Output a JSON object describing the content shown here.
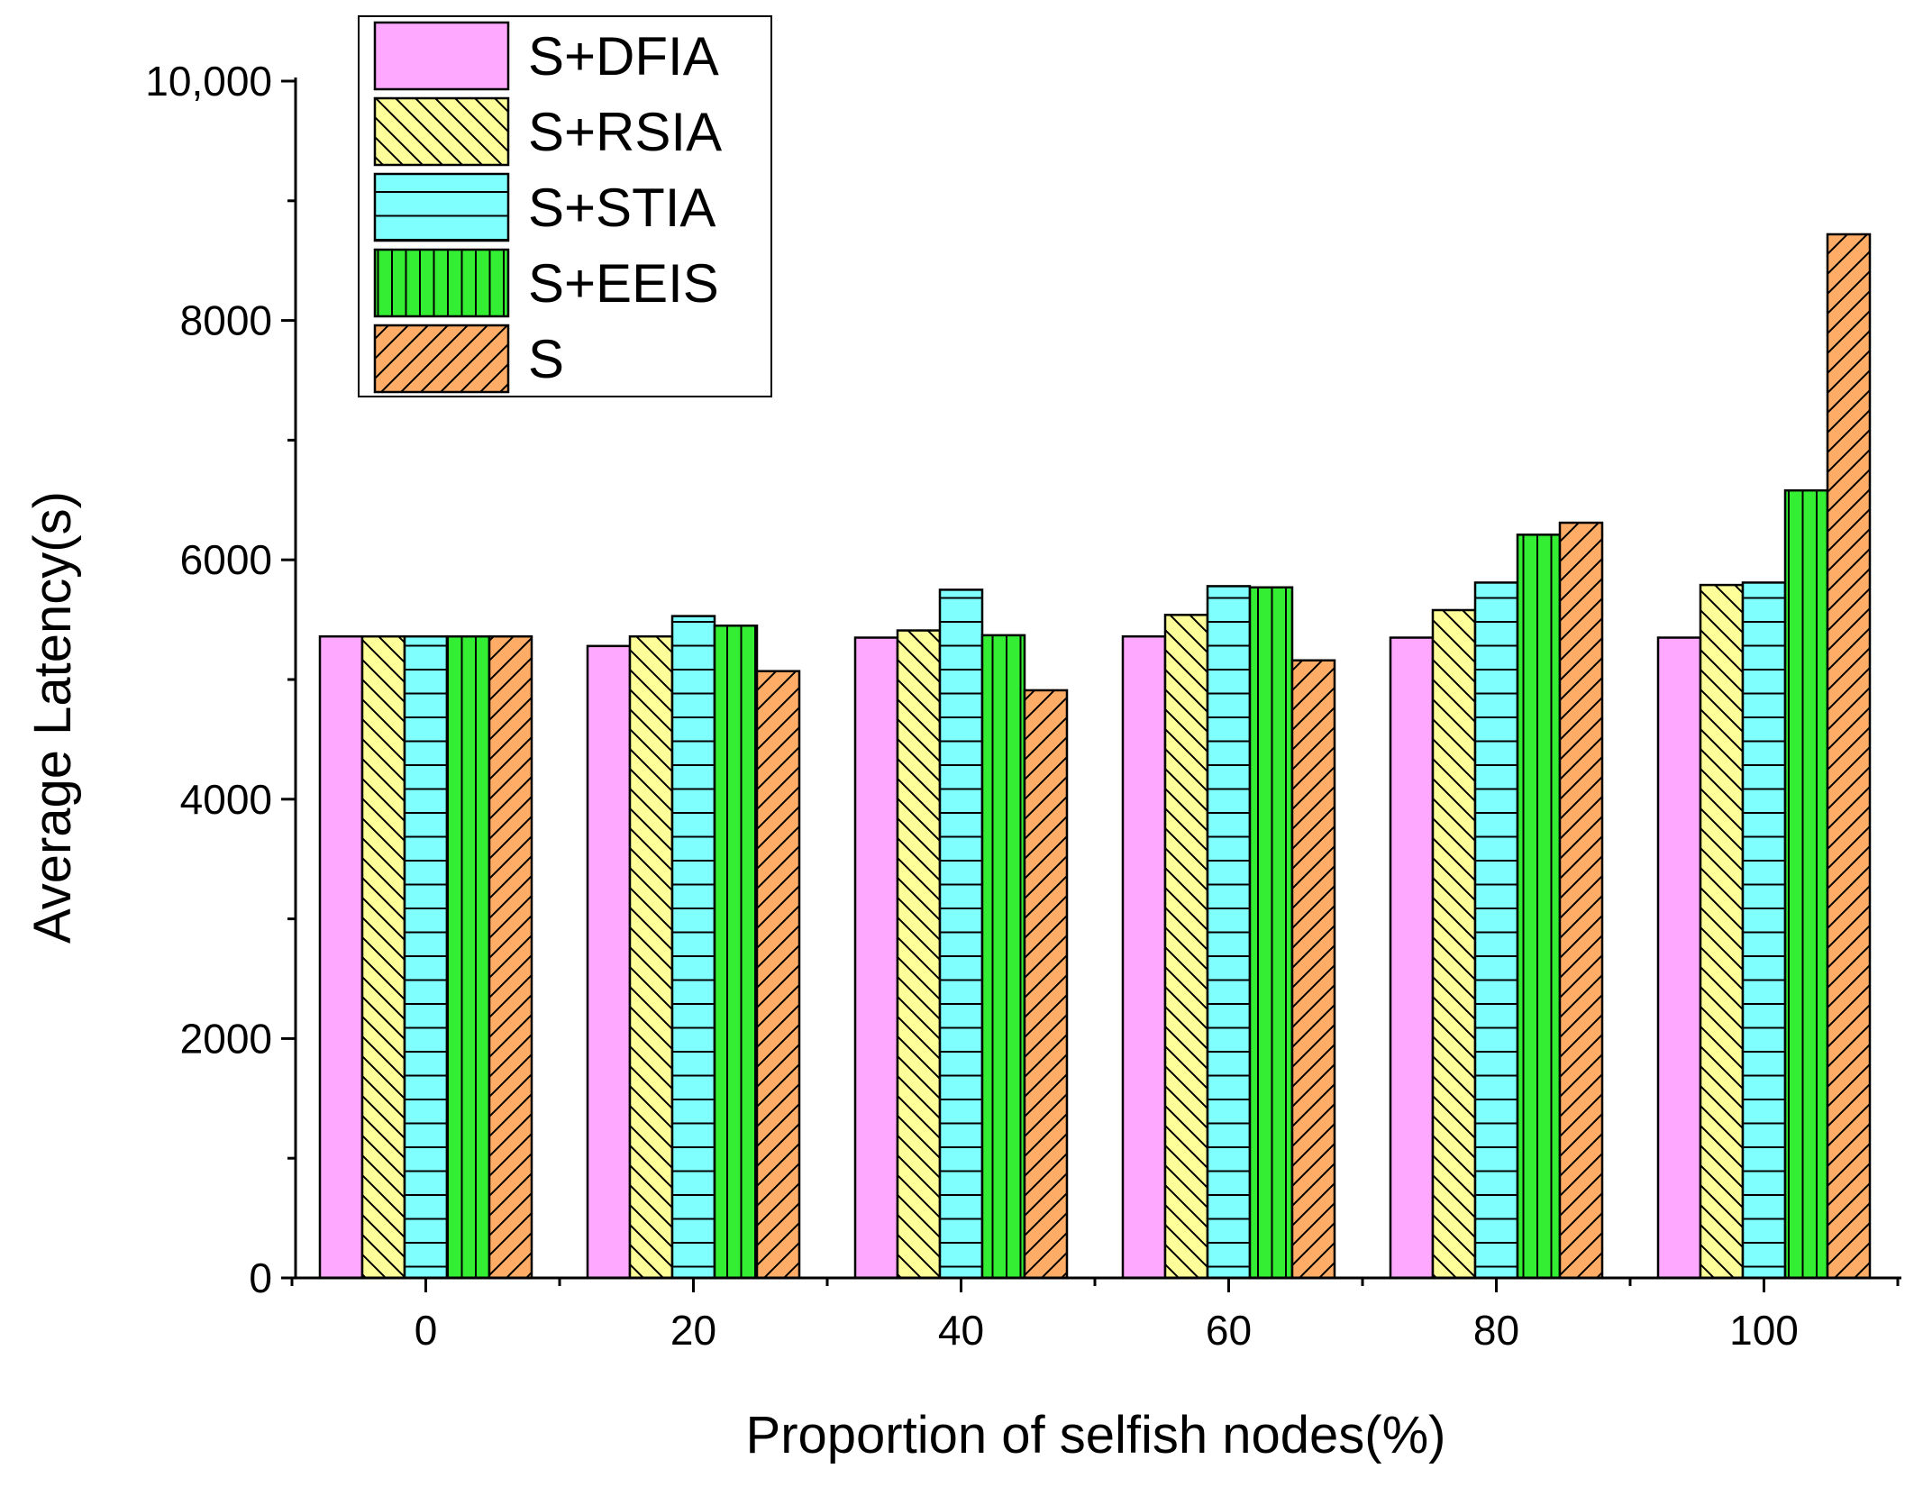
{
  "chart_data": {
    "type": "bar",
    "title": "",
    "xlabel": "Proportion of selfish nodes(%)",
    "ylabel": "Average Latency(s)",
    "categories": [
      "0",
      "20",
      "40",
      "60",
      "80",
      "100"
    ],
    "ylim": [
      0,
      10000
    ],
    "y_ticks": [
      0,
      2000,
      4000,
      6000,
      8000,
      10000
    ],
    "y_tick_labels": [
      "0",
      "2000",
      "4000",
      "6000",
      "8000",
      "10,000"
    ],
    "legend_position": "top-left",
    "series": [
      {
        "name": "S+DFIA",
        "color": "#ffa8ff",
        "pattern": "none",
        "values": [
          5360,
          5280,
          5350,
          5360,
          5350,
          5350
        ]
      },
      {
        "name": "S+RSIA",
        "color": "#ffff99",
        "pattern": "backslash",
        "values": [
          5360,
          5360,
          5410,
          5540,
          5580,
          5790
        ]
      },
      {
        "name": "S+STIA",
        "color": "#80ffff",
        "pattern": "horizontal",
        "values": [
          5360,
          5530,
          5750,
          5780,
          5810,
          5810
        ]
      },
      {
        "name": "S+EEIS",
        "color": "#33ee33",
        "pattern": "vertical",
        "values": [
          5360,
          5450,
          5370,
          5770,
          6210,
          6580
        ]
      },
      {
        "name": "S",
        "color": "#ffad66",
        "pattern": "slash",
        "values": [
          5360,
          5070,
          4910,
          5160,
          6310,
          8720
        ]
      }
    ]
  }
}
